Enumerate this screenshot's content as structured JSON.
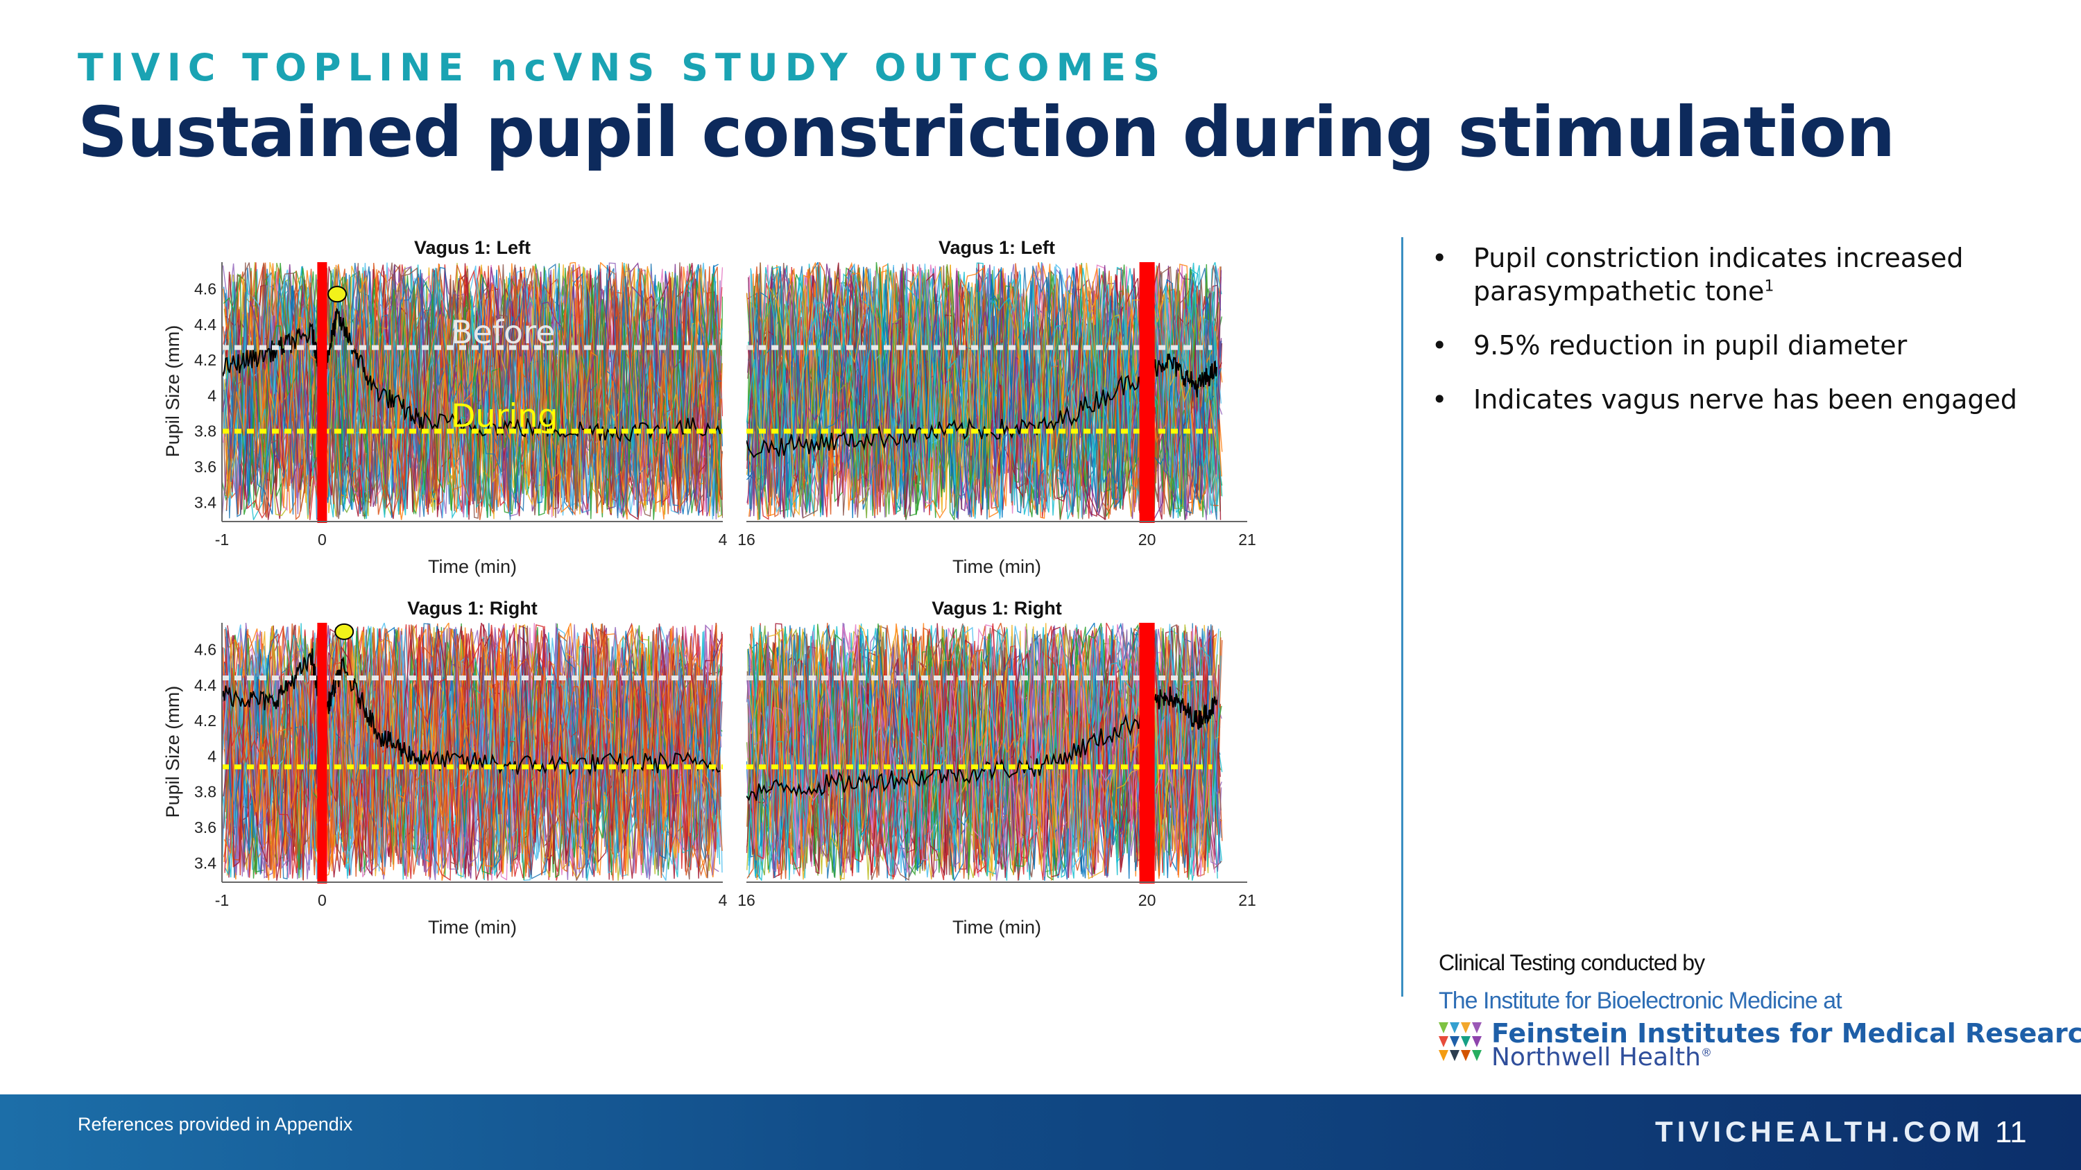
{
  "header": {
    "eyebrow": "TIVIC TOPLINE ncVNS STUDY OUTCOMES",
    "title": "Sustained pupil constriction during stimulation"
  },
  "bullets": [
    {
      "text": "Pupil constriction indicates increased parasympathetic tone",
      "sup": "1"
    },
    {
      "text": "9.5% reduction in pupil diameter",
      "sup": ""
    },
    {
      "text": "Indicates vagus nerve has been engaged",
      "sup": ""
    }
  ],
  "credits": {
    "clinical": "Clinical Testing conducted by",
    "institute": "The Institute for Bioelectronic Medicine at",
    "feinstein": "Feinstein Institutes for Medical Research",
    "northwell": "Northwell Health",
    "northwell_mark": "®"
  },
  "footer": {
    "refs": "References provided in Appendix",
    "site": "TIVICHEALTH.COM",
    "page": "11"
  },
  "chart_data": [
    {
      "type": "line",
      "title": "Vagus 1: Left",
      "xlabel": "Time (min)",
      "ylabel": "Pupil Size (mm)",
      "xlim": [
        -1,
        4
      ],
      "ylim": [
        3.3,
        4.75
      ],
      "x_ticks": [
        "-1",
        "0",
        "4"
      ],
      "y_ticks": [
        3.4,
        3.6,
        3.8,
        4,
        4.2,
        4.4,
        4.6
      ],
      "stimulation_marker_x": 0,
      "peak_marker": {
        "x": 0.15,
        "y": 4.57
      },
      "reference_lines": [
        {
          "label": "Before",
          "y": 4.27,
          "color": "#e8e8e8"
        },
        {
          "label": "During",
          "y": 3.8,
          "color": "#ffff00"
        }
      ],
      "mean_trace": {
        "x": [
          -1,
          -0.5,
          -0.1,
          0,
          0.15,
          0.5,
          1,
          2,
          3,
          4
        ],
        "y": [
          4.15,
          4.25,
          4.35,
          4.1,
          4.45,
          4.05,
          3.85,
          3.82,
          3.8,
          3.83
        ]
      }
    },
    {
      "type": "line",
      "title": "Vagus 1: Left",
      "xlabel": "Time (min)",
      "xlim": [
        16,
        21
      ],
      "ylim": [
        3.3,
        4.75
      ],
      "x_ticks": [
        "16",
        "20",
        "21"
      ],
      "stimulation_marker_x": 20,
      "mean_trace": {
        "x": [
          16,
          17,
          18,
          19,
          19.9,
          20.2,
          20.5,
          20.7
        ],
        "y": [
          3.7,
          3.75,
          3.8,
          3.82,
          4.1,
          4.2,
          4.05,
          4.15
        ]
      }
    },
    {
      "type": "line",
      "title": "Vagus 1: Right",
      "xlabel": "Time (min)",
      "ylabel": "Pupil Size (mm)",
      "xlim": [
        -1,
        4
      ],
      "ylim": [
        3.3,
        4.75
      ],
      "x_ticks": [
        "-1",
        "0",
        "4"
      ],
      "y_ticks": [
        3.4,
        3.6,
        3.8,
        4,
        4.2,
        4.4,
        4.6
      ],
      "stimulation_marker_x": 0,
      "peak_marker": {
        "x": 0.22,
        "y": 4.7
      },
      "reference_lines": [
        {
          "label": "",
          "y": 4.44,
          "color": "#e8e8e8"
        },
        {
          "label": "",
          "y": 3.94,
          "color": "#ffff00"
        }
      ],
      "mean_trace": {
        "x": [
          -1,
          -0.5,
          -0.1,
          0,
          0.2,
          0.6,
          1,
          2,
          3,
          4
        ],
        "y": [
          4.35,
          4.3,
          4.55,
          4.2,
          4.5,
          4.1,
          3.98,
          3.95,
          3.96,
          3.97
        ]
      }
    },
    {
      "type": "line",
      "title": "Vagus 1: Right",
      "xlabel": "Time (min)",
      "xlim": [
        16,
        21
      ],
      "ylim": [
        3.3,
        4.75
      ],
      "x_ticks": [
        "16",
        "20",
        "21"
      ],
      "stimulation_marker_x": 20,
      "mean_trace": {
        "x": [
          16,
          17,
          18,
          19,
          19.9,
          20.2,
          20.5,
          20.7
        ],
        "y": [
          3.8,
          3.85,
          3.9,
          3.95,
          4.2,
          4.35,
          4.2,
          4.3
        ]
      }
    }
  ],
  "colors": {
    "stim_bar": "#ff0000",
    "peak_marker": "#f2f21a",
    "mean_trace": "#000000",
    "accent": "#1aa3b3",
    "title": "#0d2a5c"
  }
}
